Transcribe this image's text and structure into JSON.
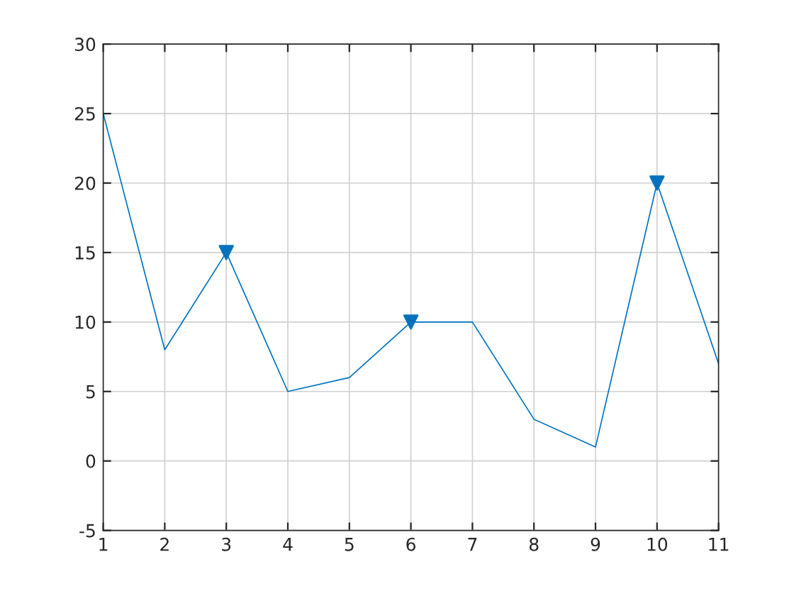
{
  "chart_data": {
    "type": "line",
    "x": [
      1,
      2,
      3,
      4,
      5,
      6,
      7,
      8,
      9,
      10,
      11
    ],
    "series": [
      {
        "color": "#0072bd",
        "values": [
          25,
          8,
          15,
          5,
          6,
          10,
          10,
          3,
          1,
          20,
          7
        ]
      },
      {
        "type": "scatter",
        "color": "#0072bd",
        "marker": "triangle",
        "x": [
          3,
          6,
          10
        ],
        "values": [
          15,
          10,
          20
        ]
      }
    ],
    "xlim": [
      1,
      11
    ],
    "xticks": [
      1,
      2,
      3,
      4,
      5,
      6,
      7,
      8,
      9,
      10,
      11
    ],
    "ylim": [
      -5,
      30
    ],
    "yticks": [
      -5,
      0,
      5,
      10,
      15,
      20,
      25,
      30
    ],
    "grid": true,
    "marker": "none",
    "line_style": "solid"
  }
}
